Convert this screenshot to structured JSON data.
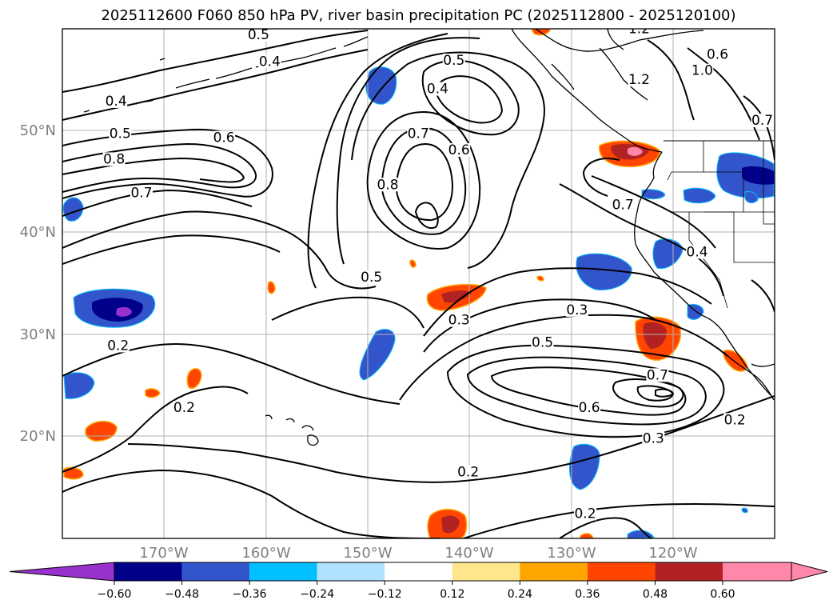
{
  "title": "2025112600 F060 850 hPa PV, river basin precipitation PC (2025112800 - 2025120100)",
  "map": {
    "lon_ticks": [
      "170°W",
      "160°W",
      "150°W",
      "140°W",
      "130°W",
      "120°W"
    ],
    "lat_ticks": [
      "50°N",
      "40°N",
      "30°N",
      "20°N"
    ],
    "contour_labels": [
      {
        "text": "0.5",
        "lon": -160.7,
        "lat": 59.1
      },
      {
        "text": "1.2",
        "lon": -123.3,
        "lat": 59.7
      },
      {
        "text": "0.4",
        "lon": -159.6,
        "lat": 56.5
      },
      {
        "text": "0.5",
        "lon": -141.5,
        "lat": 56.6
      },
      {
        "text": "1.2",
        "lon": -123.3,
        "lat": 54.7
      },
      {
        "text": "1.0",
        "lon": -117.1,
        "lat": 55.6
      },
      {
        "text": "0.6",
        "lon": -115.6,
        "lat": 57.2
      },
      {
        "text": "0.4",
        "lon": -174.7,
        "lat": 52.6
      },
      {
        "text": "0.4",
        "lon": -143.1,
        "lat": 53.8
      },
      {
        "text": "0.7",
        "lon": -111.2,
        "lat": 50.7
      },
      {
        "text": "0.5",
        "lon": -174.3,
        "lat": 49.4
      },
      {
        "text": "0.6",
        "lon": -164.1,
        "lat": 49.0
      },
      {
        "text": "0.7",
        "lon": -145.0,
        "lat": 49.4
      },
      {
        "text": "0.6",
        "lon": -141.0,
        "lat": 47.8
      },
      {
        "text": "0.8",
        "lon": -174.9,
        "lat": 46.9
      },
      {
        "text": "0.8",
        "lon": -148.0,
        "lat": 44.4
      },
      {
        "text": "0.7",
        "lon": -172.2,
        "lat": 43.6
      },
      {
        "text": "0.7",
        "lon": -124.9,
        "lat": 42.4
      },
      {
        "text": "0.4",
        "lon": -117.6,
        "lat": 37.8
      },
      {
        "text": "0.5",
        "lon": -149.6,
        "lat": 35.3
      },
      {
        "text": "0.3",
        "lon": -129.4,
        "lat": 32.1
      },
      {
        "text": "0.3",
        "lon": -141.0,
        "lat": 31.1
      },
      {
        "text": "0.2",
        "lon": -174.5,
        "lat": 28.6
      },
      {
        "text": "0.5",
        "lon": -132.8,
        "lat": 28.9
      },
      {
        "text": "0.7",
        "lon": -121.5,
        "lat": 25.7
      },
      {
        "text": "0.6",
        "lon": -128.2,
        "lat": 22.5
      },
      {
        "text": "0.2",
        "lon": -168.0,
        "lat": 22.5
      },
      {
        "text": "0.2",
        "lon": -113.9,
        "lat": 21.3
      },
      {
        "text": "0.3",
        "lon": -121.9,
        "lat": 19.5
      },
      {
        "text": "0.2",
        "lon": -140.1,
        "lat": 16.2
      },
      {
        "text": "0.2",
        "lon": -128.6,
        "lat": 12.1
      }
    ]
  },
  "colorbar": {
    "labels": [
      "−0.60",
      "−0.48",
      "−0.36",
      "−0.24",
      "−0.12",
      "0.12",
      "0.24",
      "0.36",
      "0.48",
      "0.60"
    ],
    "colors": [
      "#9932cc",
      "#00008b",
      "#3355cc",
      "#00bfff",
      "#b0e2ff",
      "#ffffff",
      "#ffe68c",
      "#ffa500",
      "#ff4500",
      "#b22222",
      "#ff88aa",
      "#ff88aa"
    ]
  },
  "colors": {
    "contour": "#000000",
    "grid": "#b0b0b0",
    "tick_label": "#7f7f7f"
  }
}
